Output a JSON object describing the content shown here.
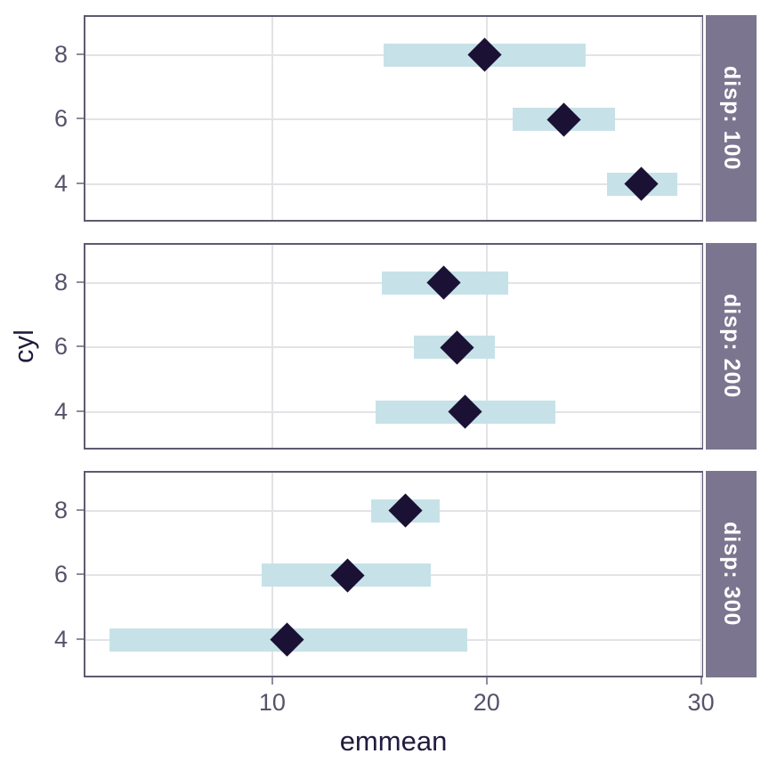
{
  "chart_data": {
    "type": "pointrange",
    "title": "",
    "xlabel": "emmean",
    "ylabel": "cyl",
    "x_ticks": [
      10,
      20,
      30
    ],
    "xlim": [
      1.2,
      30.1
    ],
    "y_categories": [
      "8",
      "6",
      "4"
    ],
    "grid": "major-only",
    "legend": "none",
    "facets": [
      {
        "label": "disp: 100",
        "rows": [
          {
            "cyl": "8",
            "emmean": 19.9,
            "lower": 15.2,
            "upper": 24.6
          },
          {
            "cyl": "6",
            "emmean": 23.6,
            "lower": 21.2,
            "upper": 26.0
          },
          {
            "cyl": "4",
            "emmean": 27.2,
            "lower": 25.6,
            "upper": 28.9
          }
        ]
      },
      {
        "label": "disp: 200",
        "rows": [
          {
            "cyl": "8",
            "emmean": 18.0,
            "lower": 15.1,
            "upper": 21.0
          },
          {
            "cyl": "6",
            "emmean": 18.6,
            "lower": 16.6,
            "upper": 20.4
          },
          {
            "cyl": "4",
            "emmean": 19.0,
            "lower": 14.8,
            "upper": 23.2
          }
        ]
      },
      {
        "label": "disp: 300",
        "rows": [
          {
            "cyl": "8",
            "emmean": 16.2,
            "lower": 14.6,
            "upper": 17.8
          },
          {
            "cyl": "6",
            "emmean": 13.5,
            "lower": 9.5,
            "upper": 17.4
          },
          {
            "cyl": "4",
            "emmean": 10.7,
            "lower": 2.4,
            "upper": 19.1
          }
        ]
      }
    ],
    "colors": {
      "bar_fill": "#c6e2e8",
      "point_fill": "#1a1135",
      "strip_bg": "#7c7590",
      "strip_text": "#ffffff",
      "panel_border": "#5d5a70",
      "gridline": "#e3e3e7",
      "tick_text": "#56526a",
      "axis_title_text": "#221b3e"
    }
  }
}
